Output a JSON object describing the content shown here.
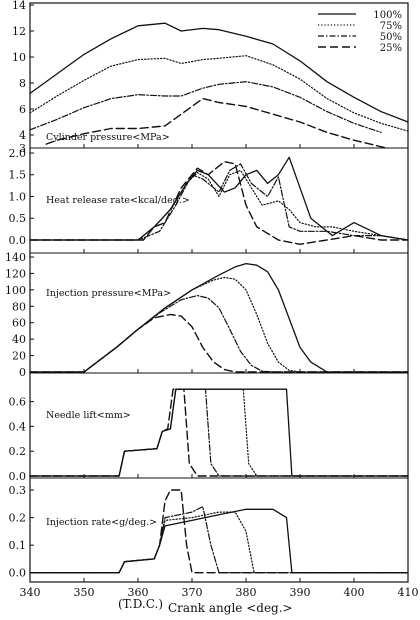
{
  "chart_data": {
    "type": "line",
    "x_range": [
      340,
      410
    ],
    "x_ticks": [
      340,
      350,
      360,
      370,
      380,
      390,
      400,
      410
    ],
    "xlabel_left": "(T.D.C.)",
    "xlabel": "Crank angle <deg.>",
    "legend": {
      "entries": [
        "100%",
        "75%",
        "50%",
        "25%"
      ],
      "styles": [
        "solid",
        "dotted",
        "dashdot",
        "dashed"
      ],
      "placement": "top-right"
    },
    "panels": [
      {
        "id": "cylinder",
        "label": "Cylinder pressure<MPa>",
        "ylim": [
          3,
          14
        ],
        "yticks": [
          3,
          4,
          6,
          8,
          10,
          12,
          14
        ],
        "series": [
          {
            "name": "100%",
            "x": [
              340,
              345,
              350,
              355,
              360,
              365,
              368,
              372,
              375,
              380,
              385,
              390,
              395,
              400,
              405,
              410
            ],
            "y": [
              7.2,
              8.7,
              10.2,
              11.4,
              12.4,
              12.6,
              12.0,
              12.2,
              12.1,
              11.6,
              11.0,
              9.7,
              8.1,
              6.9,
              5.8,
              5.0
            ]
          },
          {
            "name": "75%",
            "x": [
              340,
              345,
              350,
              355,
              360,
              365,
              368,
              372,
              375,
              380,
              385,
              390,
              395,
              400,
              405,
              410
            ],
            "y": [
              5.7,
              7.0,
              8.2,
              9.3,
              9.8,
              9.9,
              9.5,
              9.8,
              9.9,
              10.1,
              9.4,
              8.3,
              6.8,
              5.7,
              4.9,
              4.3
            ]
          },
          {
            "name": "50%",
            "x": [
              340,
              345,
              350,
              355,
              360,
              365,
              368,
              372,
              375,
              380,
              385,
              390,
              395,
              400,
              405
            ],
            "y": [
              4.4,
              5.2,
              6.1,
              6.8,
              7.1,
              7.0,
              7.0,
              7.6,
              7.9,
              8.1,
              7.7,
              6.9,
              5.8,
              4.9,
              4.2
            ]
          },
          {
            "name": "25%",
            "x": [
              343,
              345,
              350,
              355,
              360,
              365,
              368,
              372,
              375,
              380,
              385,
              390,
              395,
              400,
              406
            ],
            "y": [
              3.3,
              3.6,
              4.1,
              4.5,
              4.5,
              4.7,
              5.6,
              6.8,
              6.5,
              6.2,
              5.6,
              5.0,
              4.2,
              3.6,
              3.0
            ]
          }
        ]
      },
      {
        "id": "heat",
        "label": "Heat release rate<kcal/deg.>",
        "ylim": [
          -0.3,
          2.0
        ],
        "yticks": [
          0.0,
          0.5,
          1.0,
          1.5,
          2.0
        ],
        "series": [
          {
            "name": "100%",
            "x": [
              340,
              355,
              360,
              363,
              366,
              369,
              371,
              373,
              376,
              378,
              380,
              382,
              384,
              386,
              388,
              390,
              392,
              396,
              400,
              405,
              410
            ],
            "y": [
              0,
              0,
              0,
              0.3,
              0.7,
              1.3,
              1.6,
              1.5,
              1.1,
              1.2,
              1.5,
              1.6,
              1.3,
              1.5,
              1.9,
              1.2,
              0.5,
              0.1,
              0.4,
              0.1,
              0
            ]
          },
          {
            "name": "75%",
            "x": [
              340,
              355,
              360,
              363,
              366,
              369,
              371,
              373,
              375,
              377,
              379,
              381,
              383,
              386,
              388,
              390,
              393,
              396,
              400,
              405,
              410
            ],
            "y": [
              0,
              0,
              0,
              0.3,
              0.7,
              1.3,
              1.55,
              1.4,
              1.0,
              1.5,
              1.6,
              1.2,
              0.8,
              0.9,
              0.7,
              0.4,
              0.3,
              0.3,
              0.2,
              0.1,
              0
            ]
          },
          {
            "name": "50%",
            "x": [
              340,
              355,
              360,
              364,
              367,
              370,
              372,
              375,
              377,
              379,
              381,
              384,
              386,
              388,
              390,
              395,
              400,
              405,
              410
            ],
            "y": [
              0,
              0,
              0,
              0.2,
              0.8,
              1.5,
              1.4,
              1.1,
              1.6,
              1.75,
              1.3,
              1.0,
              1.45,
              0.3,
              0.2,
              0.2,
              0.1,
              0.1,
              0
            ]
          },
          {
            "name": "25%",
            "x": [
              340,
              358,
              361,
              363,
              365,
              368,
              371,
              373,
              376,
              378,
              380,
              382,
              386,
              390,
              395,
              400,
              405,
              410
            ],
            "y": [
              0,
              0,
              0,
              0.3,
              0.4,
              1.2,
              1.65,
              1.5,
              1.8,
              1.75,
              0.8,
              0.3,
              0,
              -0.1,
              0,
              0.1,
              0,
              0
            ]
          }
        ]
      },
      {
        "id": "injection_pressure",
        "label": "Injection pressure<MPa>",
        "ylim": [
          0,
          140
        ],
        "yticks": [
          0,
          20,
          40,
          60,
          80,
          100,
          120,
          140
        ],
        "series": [
          {
            "name": "100%",
            "x": [
              340,
              350,
              352,
              356,
              360,
              365,
              370,
              375,
              378,
              380,
              382,
              384,
              386,
              388,
              390,
              392,
              395,
              410
            ],
            "y": [
              0,
              0,
              10,
              30,
              52,
              78,
              100,
              118,
              128,
              132,
              130,
              122,
              100,
              65,
              30,
              12,
              0,
              0
            ]
          },
          {
            "name": "75%",
            "x": [
              340,
              350,
              352,
              356,
              360,
              365,
              370,
              374,
              376,
              378,
              380,
              382,
              384,
              386,
              388,
              390,
              410
            ],
            "y": [
              0,
              0,
              10,
              30,
              52,
              78,
              100,
              112,
              115,
              113,
              100,
              70,
              35,
              12,
              2,
              0,
              0
            ]
          },
          {
            "name": "50%",
            "x": [
              340,
              350,
              352,
              356,
              360,
              364,
              368,
              371,
              373,
              375,
              377,
              379,
              381,
              383,
              385,
              410
            ],
            "y": [
              0,
              0,
              10,
              30,
              52,
              72,
              88,
              93,
              90,
              78,
              52,
              25,
              8,
              1,
              0,
              0
            ]
          },
          {
            "name": "25%",
            "x": [
              340,
              350,
              352,
              356,
              360,
              363,
              366,
              368,
              370,
              372,
              374,
              376,
              378,
              380,
              410
            ],
            "y": [
              0,
              0,
              10,
              30,
              52,
              66,
              70,
              68,
              55,
              30,
              12,
              3,
              0,
              0,
              0
            ]
          }
        ]
      },
      {
        "id": "needle",
        "label": "Needle lift<mm>",
        "ylim": [
          0,
          0.75
        ],
        "yticks": [
          0.0,
          0.2,
          0.4,
          0.6
        ],
        "series": [
          {
            "name": "100%",
            "x": [
              340,
              356.5,
              357.5,
              363.5,
              364.5,
              366,
              367,
              387.5,
              388.5,
              410
            ],
            "y": [
              0,
              0,
              0.2,
              0.22,
              0.36,
              0.38,
              0.7,
              0.7,
              0,
              0
            ]
          },
          {
            "name": "75%",
            "x": [
              340,
              356.5,
              357.5,
              363.5,
              364.5,
              366,
              367,
              379.5,
              380.5,
              382,
              410
            ],
            "y": [
              0,
              0,
              0.2,
              0.22,
              0.36,
              0.38,
              0.7,
              0.7,
              0.1,
              0,
              0
            ]
          },
          {
            "name": "50%",
            "x": [
              340,
              356.5,
              357.5,
              363.5,
              364.5,
              366,
              367,
              372.5,
              373.5,
              375,
              410
            ],
            "y": [
              0,
              0,
              0.2,
              0.22,
              0.36,
              0.38,
              0.7,
              0.7,
              0.1,
              0,
              0
            ]
          },
          {
            "name": "25%",
            "x": [
              340,
              356.5,
              357.5,
              363.5,
              364.5,
              365.5,
              366.5,
              368.5,
              369.5,
              371,
              410
            ],
            "y": [
              0,
              0,
              0.2,
              0.22,
              0.36,
              0.38,
              0.7,
              0.7,
              0.1,
              0,
              0
            ]
          }
        ]
      },
      {
        "id": "injection_rate",
        "label": "Injection rate<g/deg.>",
        "ylim": [
          -0.03,
          0.34
        ],
        "yticks": [
          0.0,
          0.1,
          0.2,
          0.3
        ],
        "series": [
          {
            "name": "100%",
            "x": [
              340,
              356.5,
              357.5,
              363,
              364,
              365,
              370,
              375,
              380,
              385,
              387.5,
              388.5,
              410
            ],
            "y": [
              0,
              0,
              0.04,
              0.05,
              0.1,
              0.17,
              0.19,
              0.21,
              0.23,
              0.23,
              0.2,
              0,
              0
            ]
          },
          {
            "name": "75%",
            "x": [
              340,
              356.5,
              357.5,
              363,
              364,
              365,
              370,
              375,
              378,
              380,
              381.5,
              410
            ],
            "y": [
              0,
              0,
              0.04,
              0.05,
              0.1,
              0.19,
              0.2,
              0.22,
              0.22,
              0.15,
              0,
              0
            ]
          },
          {
            "name": "50%",
            "x": [
              340,
              356.5,
              357.5,
              363,
              364,
              365,
              370,
              372,
              373.5,
              375,
              410
            ],
            "y": [
              0,
              0,
              0.04,
              0.05,
              0.1,
              0.2,
              0.22,
              0.24,
              0.1,
              0,
              0
            ]
          },
          {
            "name": "25%",
            "x": [
              340,
              356.5,
              357.5,
              363,
              364,
              365,
              366,
              368,
              369,
              370,
              410
            ],
            "y": [
              0,
              0,
              0.04,
              0.05,
              0.1,
              0.26,
              0.3,
              0.3,
              0.1,
              0,
              0
            ]
          }
        ]
      }
    ]
  }
}
